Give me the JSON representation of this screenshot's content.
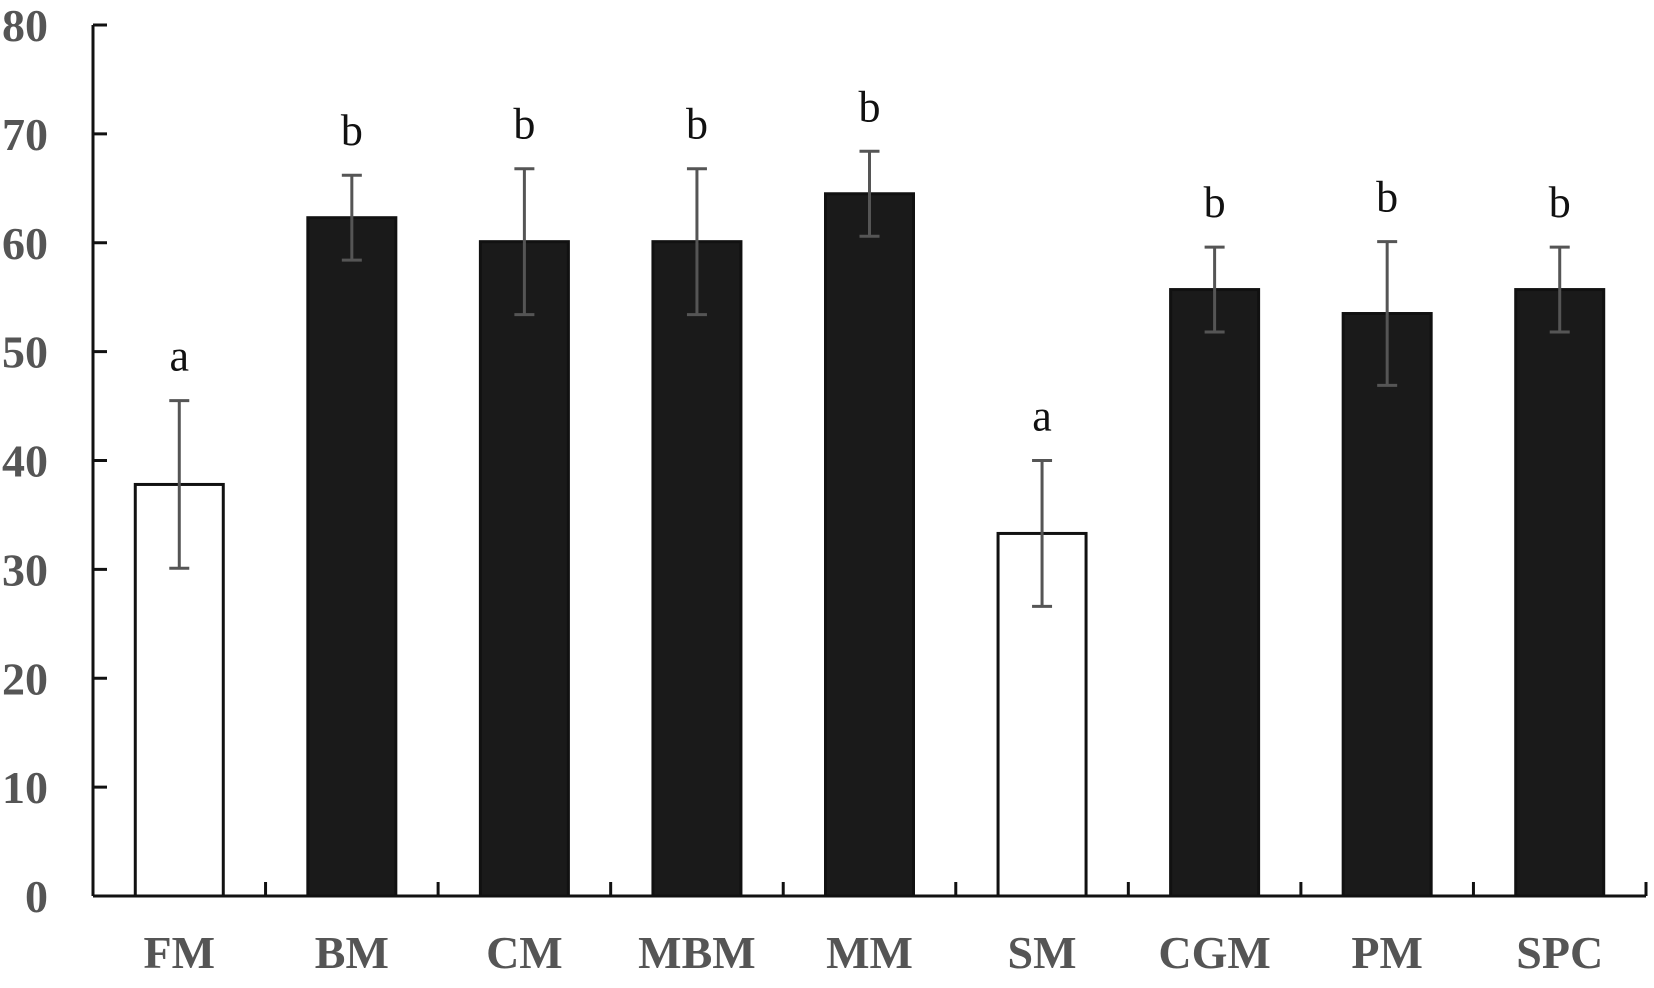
{
  "chart_data": {
    "type": "bar",
    "title": "",
    "xlabel": "",
    "ylabel": "",
    "ylim": [
      0,
      80
    ],
    "yticks": [
      0,
      10,
      20,
      30,
      40,
      50,
      60,
      70,
      80
    ],
    "categories": [
      "FM",
      "BM",
      "CM",
      "MBM",
      "MM",
      "SM",
      "CGM",
      "PM",
      "SPC"
    ],
    "values": [
      37.8,
      62.3,
      60.1,
      60.1,
      64.5,
      33.3,
      55.7,
      53.5,
      55.7
    ],
    "errors": [
      7.7,
      3.9,
      6.7,
      6.7,
      3.9,
      6.7,
      3.9,
      6.6,
      3.9
    ],
    "significance": [
      "a",
      "b",
      "b",
      "b",
      "b",
      "a",
      "b",
      "b",
      "b"
    ],
    "bar_fill": [
      "#ffffff",
      "#1a1a1a",
      "#1a1a1a",
      "#1a1a1a",
      "#1a1a1a",
      "#ffffff",
      "#1a1a1a",
      "#1a1a1a",
      "#1a1a1a"
    ],
    "grid": false,
    "legend": "none"
  },
  "colors": {
    "axis": "#111111",
    "error_bar": "#555555",
    "filled_bar": "#1a1a1a",
    "open_bar": "#ffffff"
  }
}
